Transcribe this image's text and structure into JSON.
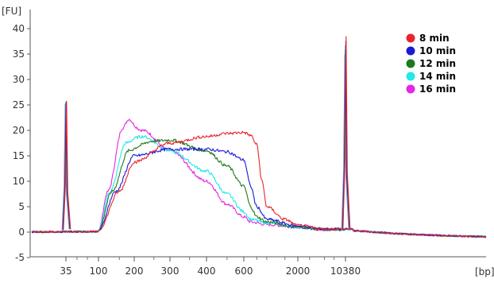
{
  "chart_data": {
    "type": "line",
    "title": "",
    "y_unit": "[FU]",
    "x_unit": "[bp]",
    "ylim": [
      -5,
      40
    ],
    "y_ticks": [
      -5,
      0,
      5,
      10,
      15,
      20,
      25,
      30,
      35,
      40
    ],
    "x_ticks": [
      "35",
      "100",
      "200",
      "300",
      "400",
      "600",
      "2000",
      "10380"
    ],
    "x_scale": "nonlinear (electropherogram, calibrated by ladder)",
    "grid": false,
    "legend_position": "top-right",
    "markers": [
      {
        "bp": 35,
        "height": 25.8
      },
      {
        "bp": 10380,
        "height": 38.5
      }
    ],
    "series": [
      {
        "name": "8 min",
        "color": "#e8232b",
        "points": [
          [
            100,
            0.3
          ],
          [
            150,
            8.0
          ],
          [
            200,
            13.8
          ],
          [
            300,
            17.5
          ],
          [
            400,
            18.8
          ],
          [
            500,
            19.4
          ],
          [
            600,
            19.6
          ],
          [
            700,
            19.0
          ],
          [
            800,
            17.2
          ],
          [
            900,
            10.0
          ],
          [
            1000,
            5.0
          ],
          [
            1500,
            2.5
          ],
          [
            2000,
            1.3
          ],
          [
            5000,
            0.6
          ]
        ]
      },
      {
        "name": "10 min",
        "color": "#1a1ad4",
        "points": [
          [
            100,
            0.3
          ],
          [
            140,
            8.0
          ],
          [
            200,
            15.0
          ],
          [
            300,
            16.3
          ],
          [
            400,
            16.3
          ],
          [
            500,
            15.8
          ],
          [
            600,
            14.2
          ],
          [
            700,
            9.0
          ],
          [
            800,
            5.0
          ],
          [
            1000,
            2.5
          ],
          [
            2000,
            1.2
          ],
          [
            5000,
            0.6
          ]
        ]
      },
      {
        "name": "12 min",
        "color": "#1e7a1e",
        "points": [
          [
            100,
            0.3
          ],
          [
            130,
            8.0
          ],
          [
            180,
            16.0
          ],
          [
            250,
            17.9
          ],
          [
            300,
            18.1
          ],
          [
            400,
            16.0
          ],
          [
            500,
            13.0
          ],
          [
            600,
            9.0
          ],
          [
            700,
            5.0
          ],
          [
            800,
            3.0
          ],
          [
            1000,
            2.0
          ],
          [
            2000,
            1.0
          ],
          [
            5000,
            0.5
          ]
        ]
      },
      {
        "name": "14 min",
        "color": "#22e8e8",
        "points": [
          [
            100,
            0.3
          ],
          [
            125,
            8.0
          ],
          [
            170,
            17.5
          ],
          [
            220,
            18.8
          ],
          [
            300,
            16.0
          ],
          [
            400,
            12.0
          ],
          [
            500,
            7.5
          ],
          [
            600,
            4.0
          ],
          [
            700,
            2.5
          ],
          [
            1000,
            1.8
          ],
          [
            2000,
            1.0
          ],
          [
            5000,
            0.5
          ]
        ]
      },
      {
        "name": "16 min",
        "color": "#e626e6",
        "points": [
          [
            100,
            0.3
          ],
          [
            120,
            8.0
          ],
          [
            160,
            20.5
          ],
          [
            180,
            22.2
          ],
          [
            220,
            20.0
          ],
          [
            300,
            16.0
          ],
          [
            400,
            10.0
          ],
          [
            500,
            5.5
          ],
          [
            600,
            3.0
          ],
          [
            700,
            2.0
          ],
          [
            1000,
            1.5
          ],
          [
            2000,
            1.0
          ],
          [
            5000,
            0.5
          ]
        ]
      }
    ]
  }
}
